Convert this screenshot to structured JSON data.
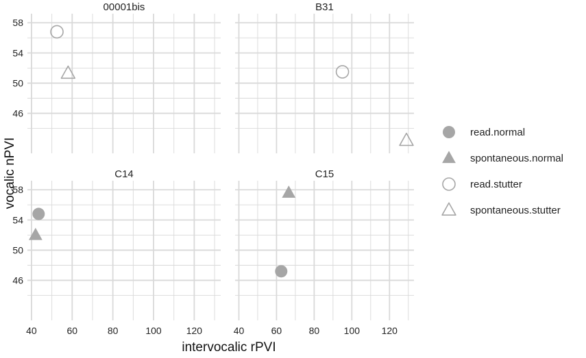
{
  "chart_data": {
    "type": "scatter",
    "facet_layout": "2x2",
    "xlabel": "intervocalic rPVI",
    "ylabel": "vocalic nPVI",
    "xlim": [
      38,
      133
    ],
    "ylim": [
      40.7,
      59.2
    ],
    "x_ticks": [
      40,
      60,
      80,
      100,
      120
    ],
    "y_ticks": [
      46,
      50,
      54,
      58
    ],
    "grid": true,
    "legend_position": "right",
    "point_color": "#a6a6a6",
    "legend": [
      {
        "name": "read.normal",
        "marker": "circle-filled"
      },
      {
        "name": "spontaneous.normal",
        "marker": "triangle-filled"
      },
      {
        "name": "read.stutter",
        "marker": "circle-open"
      },
      {
        "name": "spontaneous.stutter",
        "marker": "triangle-open"
      }
    ],
    "panels": [
      {
        "title": "00001bis",
        "points": [
          {
            "series": "read.stutter",
            "x": 52.5,
            "y": 56.8
          },
          {
            "series": "spontaneous.stutter",
            "x": 58,
            "y": 51.3
          }
        ]
      },
      {
        "title": "B31",
        "points": [
          {
            "series": "read.stutter",
            "x": 95,
            "y": 51.5
          },
          {
            "series": "spontaneous.stutter",
            "x": 129,
            "y": 42.4
          }
        ]
      },
      {
        "title": "C14",
        "points": [
          {
            "series": "read.normal",
            "x": 43.5,
            "y": 54.8
          },
          {
            "series": "spontaneous.normal",
            "x": 42,
            "y": 52
          }
        ]
      },
      {
        "title": "C15",
        "points": [
          {
            "series": "read.normal",
            "x": 62.5,
            "y": 47.2
          },
          {
            "series": "spontaneous.normal",
            "x": 66.5,
            "y": 57.6
          }
        ]
      }
    ]
  }
}
